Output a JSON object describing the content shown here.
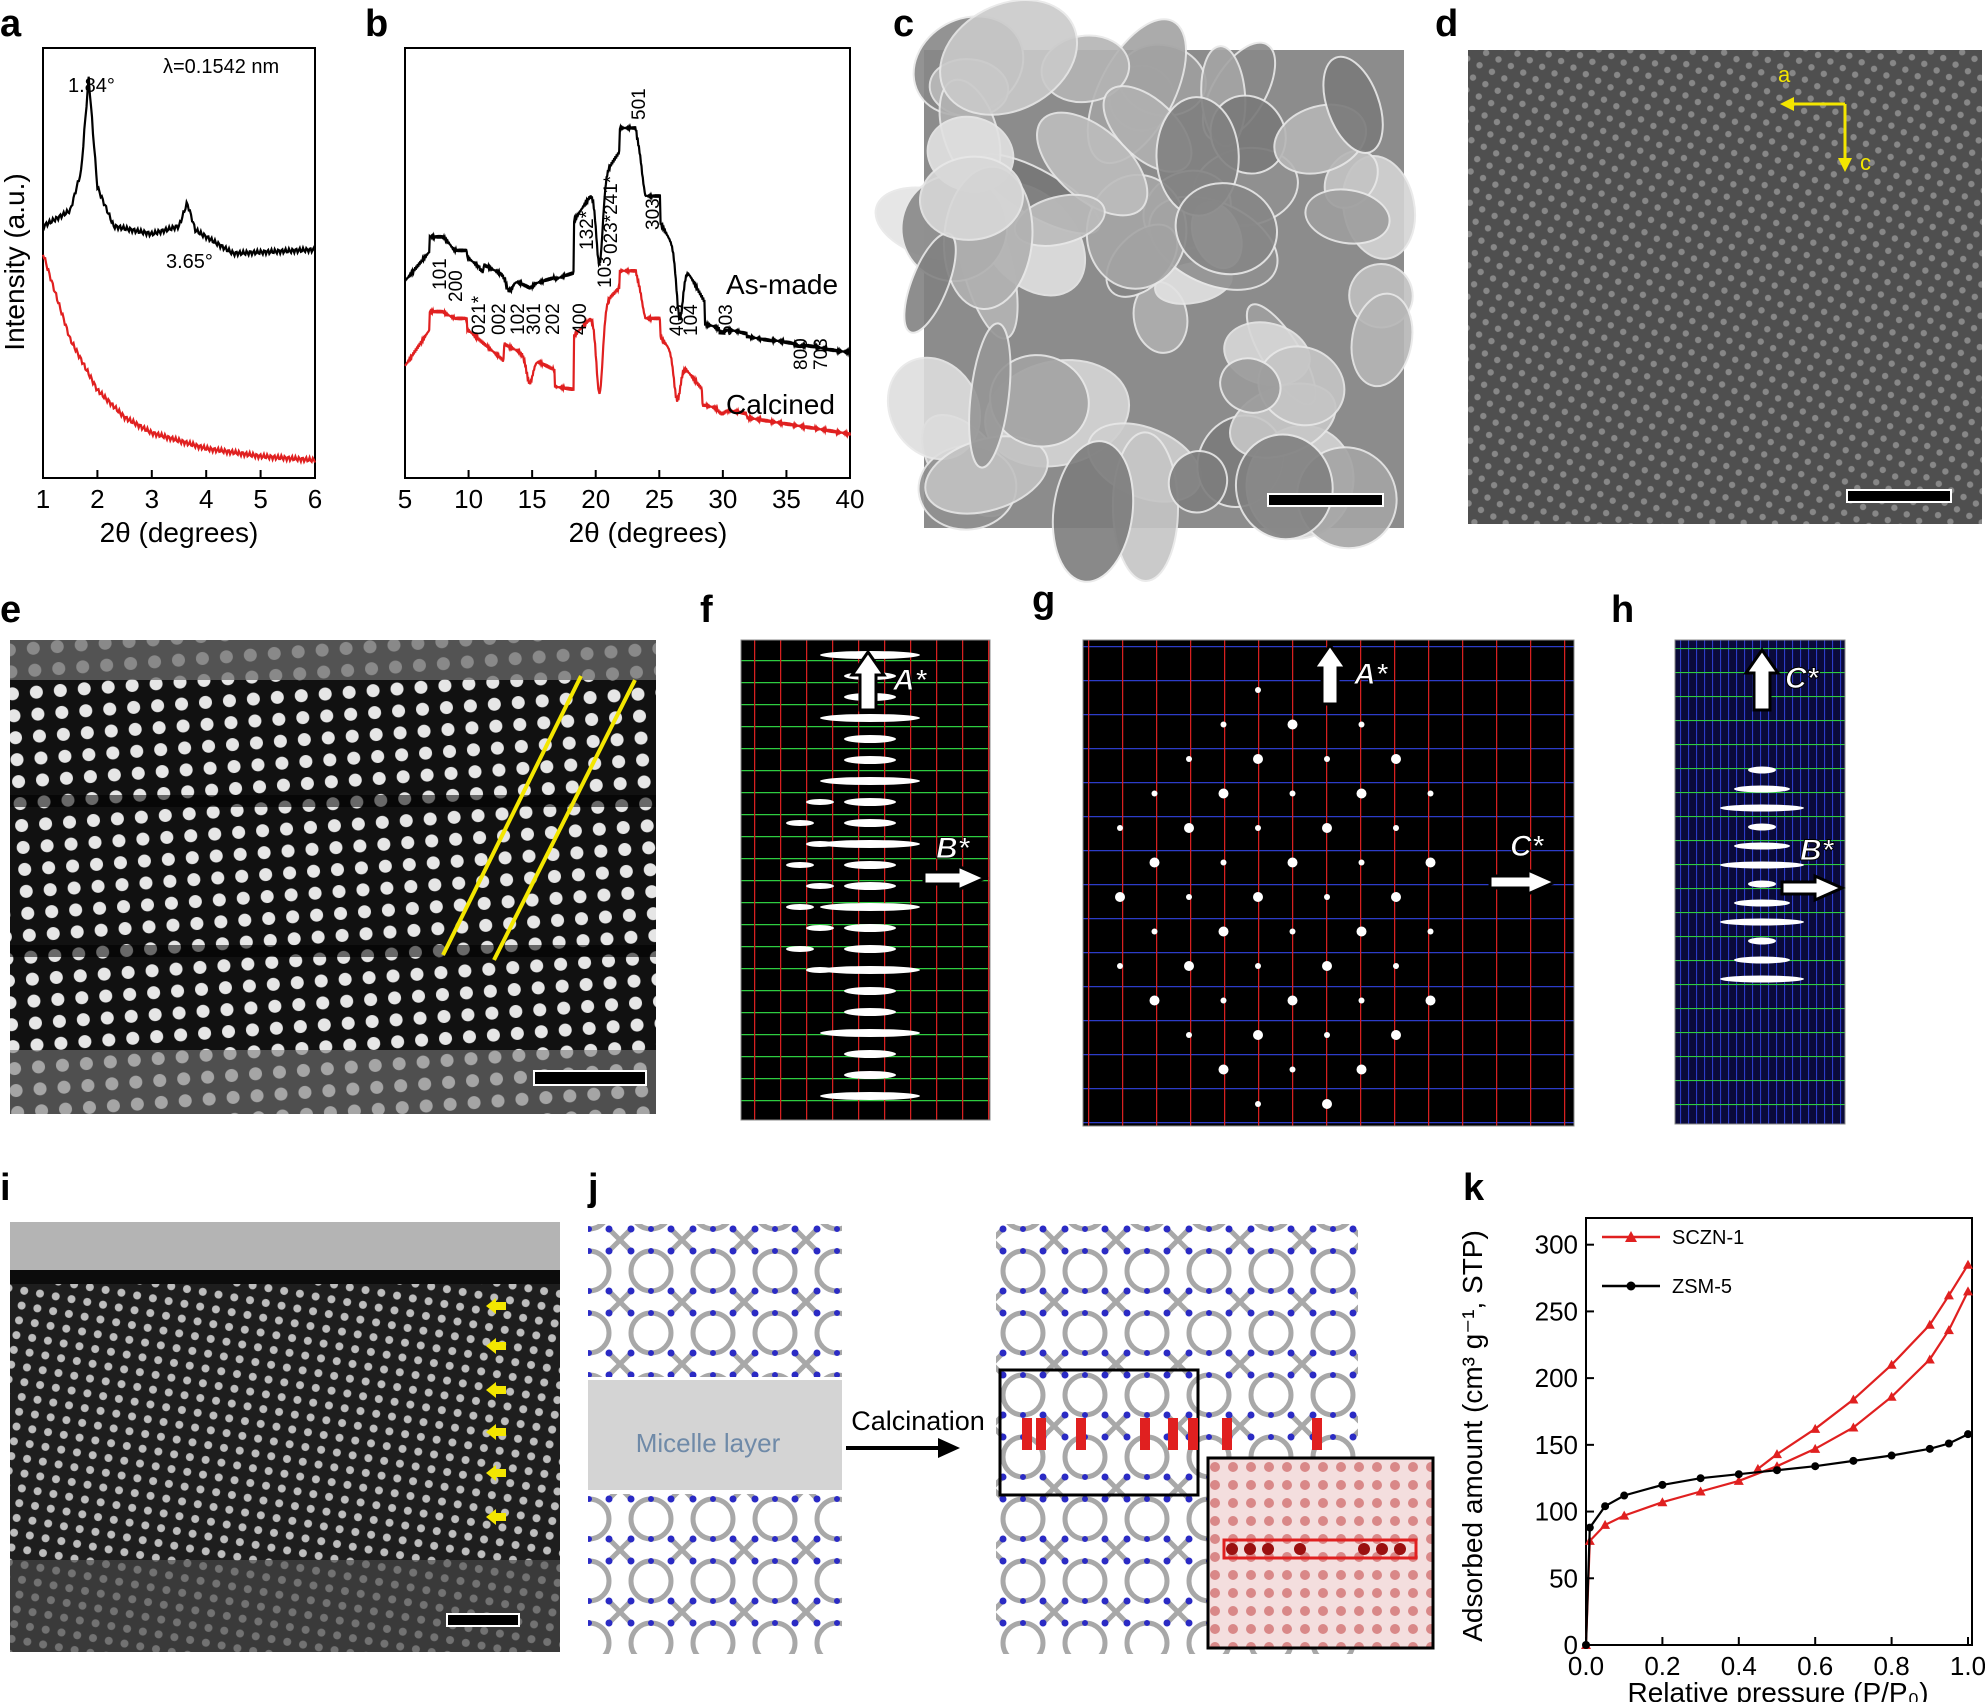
{
  "panels": {
    "a": "a",
    "b": "b",
    "c": "c",
    "d": "d",
    "e": "e",
    "f": "f",
    "g": "g",
    "h": "h",
    "i": "i",
    "j": "j",
    "k": "k"
  },
  "chart_data": [
    {
      "panel": "a",
      "type": "line",
      "xlabel": "2θ (degrees)",
      "ylabel": "Intensity (a.u.)",
      "xlim": [
        1,
        6
      ],
      "xticks": [
        "1",
        "2",
        "3",
        "4",
        "5",
        "6"
      ],
      "annotations": [
        "λ=0.1542 nm",
        "1.84°",
        "3.65°"
      ],
      "series": [
        {
          "color": "#000000",
          "x": [
            1.0,
            1.5,
            1.7,
            1.84,
            2.0,
            2.3,
            3.0,
            3.5,
            3.65,
            3.8,
            4.5,
            6.0
          ],
          "y": [
            0.62,
            0.66,
            0.76,
            1.0,
            0.72,
            0.62,
            0.6,
            0.62,
            0.68,
            0.61,
            0.55,
            0.56
          ]
        },
        {
          "color": "#e02020",
          "x": [
            1.0,
            1.2,
            1.5,
            2.0,
            2.5,
            3.0,
            4.0,
            5.0,
            6.0
          ],
          "y": [
            0.55,
            0.46,
            0.33,
            0.2,
            0.13,
            0.09,
            0.05,
            0.03,
            0.02
          ]
        }
      ]
    },
    {
      "panel": "b",
      "type": "line",
      "xlabel": "2θ (degrees)",
      "xlim": [
        5,
        40
      ],
      "xticks": [
        "5",
        "10",
        "15",
        "20",
        "25",
        "30",
        "35",
        "40"
      ],
      "series_labels": [
        "As-made",
        "Calcined"
      ],
      "peak_labels": [
        "101",
        "200",
        "021*",
        "002",
        "102",
        "301",
        "202",
        "400",
        "132*",
        "103",
        "023*241*",
        "501",
        "303",
        "403",
        "104",
        "503",
        "800",
        "703"
      ],
      "series": [
        {
          "name": "As-made",
          "color": "#000000",
          "x": [
            5,
            7.9,
            8.9,
            13.2,
            14.8,
            20.3,
            23.1,
            23.9,
            26.6,
            29.9,
            36.0,
            40
          ],
          "y": [
            0.55,
            0.68,
            0.64,
            0.52,
            0.53,
            0.6,
            1.0,
            0.8,
            0.44,
            0.4,
            0.36,
            0.34
          ]
        },
        {
          "name": "Calcined",
          "color": "#e02020",
          "x": [
            5,
            7.9,
            8.9,
            14.8,
            20.3,
            23.1,
            23.9,
            26.4,
            29.9,
            40
          ],
          "y": [
            0.3,
            0.46,
            0.44,
            0.25,
            0.22,
            0.58,
            0.44,
            0.2,
            0.16,
            0.1
          ]
        }
      ]
    },
    {
      "panel": "k",
      "type": "line",
      "xlabel": "Relative pressure (P/P₀)",
      "ylabel": "Adsorbed amount (cm³ g⁻¹, STP)",
      "xlim": [
        0.0,
        1.0
      ],
      "ylim": [
        0,
        320
      ],
      "xticks": [
        "0.0",
        "0.2",
        "0.4",
        "0.6",
        "0.8",
        "1.0"
      ],
      "yticks": [
        "0",
        "50",
        "100",
        "150",
        "200",
        "250",
        "300"
      ],
      "series": [
        {
          "name": "SCZN-1",
          "color": "#e02020",
          "x": [
            0.0,
            0.01,
            0.05,
            0.1,
            0.2,
            0.3,
            0.4,
            0.5,
            0.6,
            0.7,
            0.8,
            0.9,
            0.95,
            1.0
          ],
          "y": [
            0,
            78,
            90,
            97,
            107,
            115,
            123,
            134,
            147,
            163,
            186,
            214,
            236,
            265
          ]
        },
        {
          "name": "SCZN-1 desorption",
          "color": "#e02020",
          "x": [
            1.0,
            0.95,
            0.9,
            0.8,
            0.7,
            0.6,
            0.5,
            0.45
          ],
          "y": [
            285,
            262,
            240,
            210,
            184,
            162,
            143,
            132
          ]
        },
        {
          "name": "ZSM-5",
          "color": "#000000",
          "x": [
            0.0,
            0.01,
            0.05,
            0.1,
            0.2,
            0.3,
            0.4,
            0.5,
            0.6,
            0.7,
            0.8,
            0.9,
            0.95,
            1.0
          ],
          "y": [
            0,
            88,
            104,
            112,
            120,
            125,
            128,
            131,
            134,
            138,
            142,
            147,
            151,
            158
          ]
        }
      ]
    }
  ],
  "panel_d": {
    "axes": [
      "a",
      "c"
    ]
  },
  "panel_f": {
    "axes": [
      "A*",
      "B*"
    ]
  },
  "panel_g": {
    "axes": [
      "A*",
      "C*"
    ]
  },
  "panel_h": {
    "axes": [
      "C*",
      "B*"
    ]
  },
  "panel_j": {
    "micelle_label": "Micelle layer",
    "arrow_label": "Calcination"
  },
  "colors": {
    "red_series": "#e02020",
    "yellow_marker": "#f3e600",
    "micelle": "#d4d4d4",
    "atom_blue": "#2b2bc4"
  }
}
